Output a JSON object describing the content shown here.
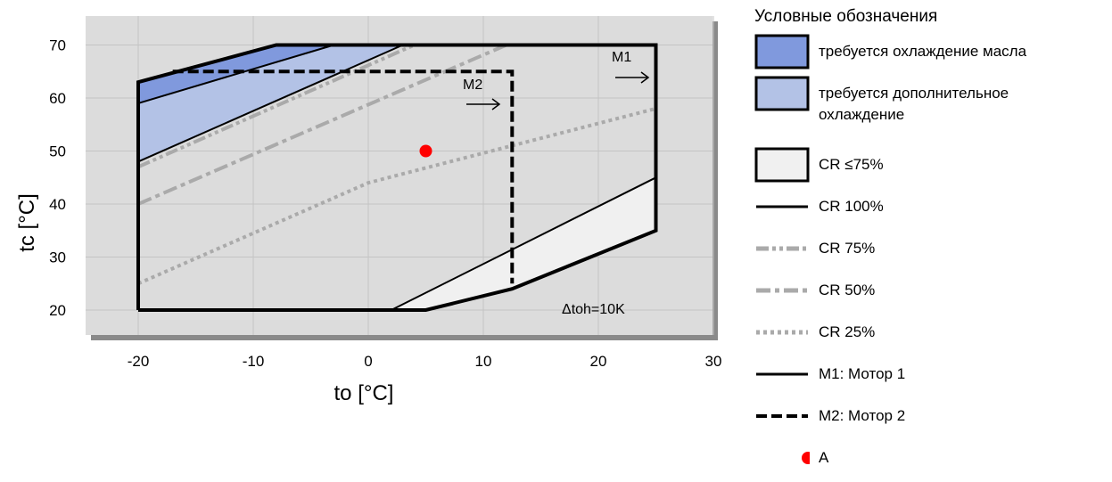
{
  "chart_data": {
    "type": "area",
    "title": "",
    "xlabel": "to [°C]",
    "ylabel": "tc [°C]",
    "xlim": [
      -25,
      30
    ],
    "ylim": [
      15,
      75
    ],
    "xticks": [
      -20,
      -10,
      0,
      10,
      20,
      30
    ],
    "yticks": [
      20,
      30,
      40,
      50,
      60,
      70
    ],
    "grid": true,
    "legend_position": "right",
    "regions": [
      {
        "key": "oil",
        "color": "#8099dd",
        "points": [
          [
            -20,
            63
          ],
          [
            -8,
            70
          ],
          [
            -3,
            70
          ],
          [
            -20,
            59
          ]
        ]
      },
      {
        "key": "add",
        "color": "#b3c2e6",
        "points": [
          [
            -20,
            59
          ],
          [
            -3,
            70
          ],
          [
            3,
            70
          ],
          [
            -20,
            48
          ]
        ]
      },
      {
        "key": "cr75",
        "color": "#f0f0f0",
        "points": [
          [
            2,
            20
          ],
          [
            5,
            20
          ],
          [
            12.5,
            24
          ],
          [
            25,
            35
          ],
          [
            25,
            45
          ]
        ]
      }
    ],
    "lines": [
      {
        "key": "cr100",
        "style": "solid",
        "color": "#000000",
        "points": [
          [
            -20,
            48
          ],
          [
            3,
            70
          ]
        ]
      },
      {
        "key": "cr100",
        "style": "solid",
        "color": "#000000",
        "points": [
          [
            -20,
            59
          ],
          [
            -3,
            70
          ]
        ]
      },
      {
        "key": "cr100",
        "style": "solid",
        "color": "#000000",
        "points": [
          [
            2,
            20
          ],
          [
            25,
            45
          ]
        ]
      },
      {
        "key": "cr75",
        "style": "dashdotdot",
        "color": "#aaaaaa",
        "points": [
          [
            -20,
            47
          ],
          [
            4,
            70
          ]
        ]
      },
      {
        "key": "cr50",
        "style": "dashdot",
        "color": "#aaaaaa",
        "points": [
          [
            -20,
            40
          ],
          [
            12,
            70
          ]
        ]
      },
      {
        "key": "cr25",
        "style": "dot",
        "color": "#aaaaaa",
        "points": [
          [
            -20,
            25
          ],
          [
            0,
            44
          ],
          [
            25,
            58
          ]
        ]
      }
    ],
    "envelopes": [
      {
        "key": "m1",
        "style": "solid",
        "points": [
          [
            -20,
            20
          ],
          [
            5,
            20
          ],
          [
            12.5,
            24
          ],
          [
            25,
            35
          ],
          [
            25,
            70
          ],
          [
            -8,
            70
          ],
          [
            -20,
            63
          ],
          [
            -20,
            20
          ]
        ]
      },
      {
        "key": "m2",
        "style": "dashed",
        "points": [
          [
            -17,
            65
          ],
          [
            12.5,
            65
          ],
          [
            12.5,
            25
          ]
        ]
      }
    ],
    "point_a": {
      "label": "A",
      "x": 5,
      "y": 50,
      "color": "#ff0000"
    },
    "annotations": {
      "m1": "M1",
      "m2": "M2",
      "dtoh": "Δtoh=10K"
    },
    "legend": {
      "title": "Условные обозначения",
      "items": [
        {
          "key": "oil",
          "label": "требуется охлаждение масла"
        },
        {
          "key": "add",
          "label": "требуется дополнительное охлаждение"
        },
        {
          "key": "crle75",
          "label": "CR ≤75%"
        },
        {
          "key": "cr100",
          "label": "CR 100%"
        },
        {
          "key": "cr75",
          "label": "CR 75%"
        },
        {
          "key": "cr50",
          "label": "CR 50%"
        },
        {
          "key": "cr25",
          "label": "CR 25%"
        },
        {
          "key": "m1",
          "label": "M1: Мотор 1"
        },
        {
          "key": "m2",
          "label": "M2: Мотор 2"
        },
        {
          "key": "a",
          "label": "A"
        }
      ]
    }
  }
}
